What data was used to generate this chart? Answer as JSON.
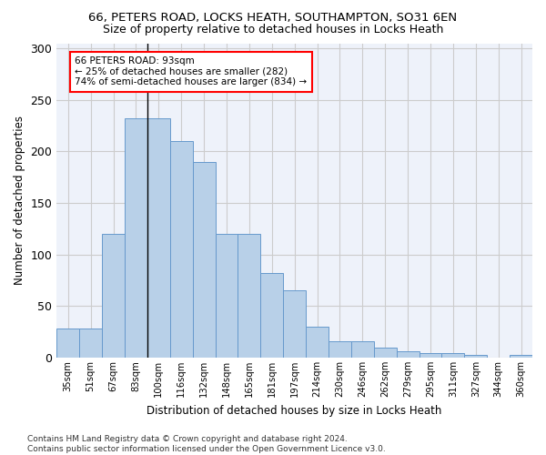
{
  "title_line1": "66, PETERS ROAD, LOCKS HEATH, SOUTHAMPTON, SO31 6EN",
  "title_line2": "Size of property relative to detached houses in Locks Heath",
  "xlabel": "Distribution of detached houses by size in Locks Heath",
  "ylabel": "Number of detached properties",
  "bar_color": "#b8d0e8",
  "bar_edge_color": "#6699cc",
  "categories": [
    "35sqm",
    "51sqm",
    "67sqm",
    "83sqm",
    "100sqm",
    "116sqm",
    "132sqm",
    "148sqm",
    "165sqm",
    "181sqm",
    "197sqm",
    "214sqm",
    "230sqm",
    "246sqm",
    "262sqm",
    "279sqm",
    "295sqm",
    "311sqm",
    "327sqm",
    "344sqm",
    "360sqm"
  ],
  "bar_values": [
    28,
    28,
    120,
    232,
    232,
    210,
    190,
    120,
    120,
    82,
    65,
    30,
    16,
    16,
    10,
    6,
    4,
    4,
    3,
    0,
    3
  ],
  "annotation_text": "66 PETERS ROAD: 93sqm\n← 25% of detached houses are smaller (282)\n74% of semi-detached houses are larger (834) →",
  "annotation_box_color": "white",
  "annotation_box_edge_color": "red",
  "property_bin": 3,
  "ylim": [
    0,
    305
  ],
  "yticks": [
    0,
    50,
    100,
    150,
    200,
    250,
    300
  ],
  "grid_color": "#cccccc",
  "background_color": "#eef2fa",
  "footnote": "Contains HM Land Registry data © Crown copyright and database right 2024.\nContains public sector information licensed under the Open Government Licence v3.0."
}
